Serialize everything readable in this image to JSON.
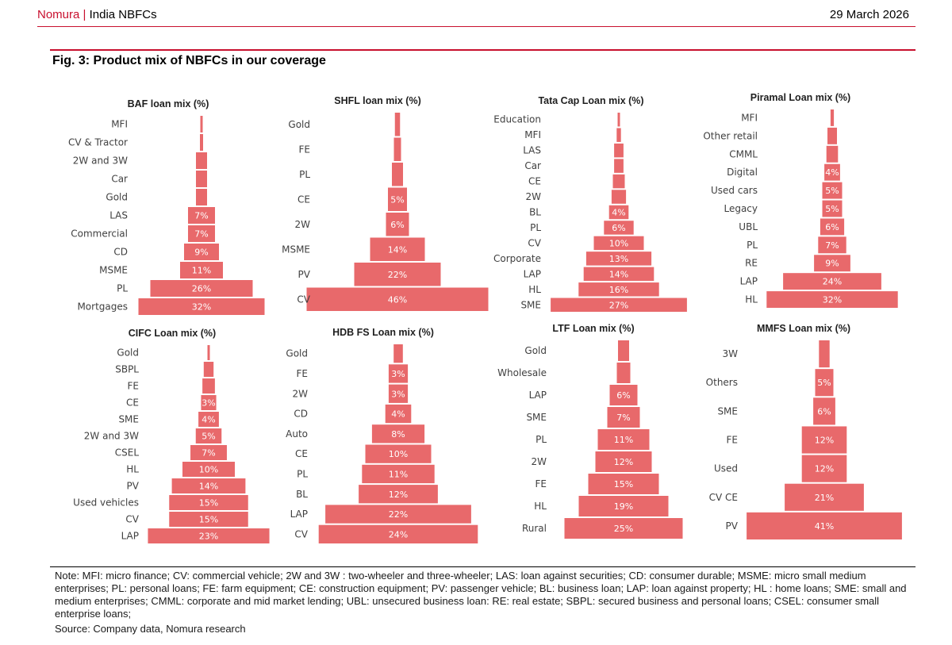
{
  "header": {
    "brand": "Nomura",
    "separator": "|",
    "section": "India NBFCs",
    "date": "29 March 2026"
  },
  "figure": {
    "title": "Fig. 3: Product mix of NBFCs in our coverage"
  },
  "colors": {
    "bar": "#e8696b",
    "accent": "#c8102e"
  },
  "chart_data": [
    {
      "type": "bar",
      "title": "BAF loan mix (%)",
      "categories": [
        "MFI",
        "CV & Tractor",
        "2W and 3W",
        "Car",
        "Gold",
        "LAS",
        "Commercial",
        "CD",
        "MSME",
        "PL",
        "Mortgages"
      ],
      "values": [
        0.5,
        1,
        3,
        3,
        3,
        7,
        7,
        9,
        11,
        26,
        32
      ],
      "labels": [
        "",
        "",
        "",
        "",
        "",
        "7%",
        "7%",
        "9%",
        "11%",
        "26%",
        "32%"
      ]
    },
    {
      "type": "bar",
      "title": "SHFL loan mix (%)",
      "categories": [
        "Gold",
        "FE",
        "PL",
        "CE",
        "2W",
        "MSME",
        "PV",
        "CV"
      ],
      "values": [
        1.5,
        2,
        3,
        5,
        6,
        14,
        22,
        46
      ],
      "labels": [
        "",
        "",
        "",
        "5%",
        "6%",
        "14%",
        "22%",
        "46%"
      ]
    },
    {
      "type": "bar",
      "title": "Tata Cap Loan mix (%)",
      "categories": [
        "Education",
        "MFI",
        "LAS",
        "Car",
        "CE",
        "2W",
        "BL",
        "PL",
        "CV",
        "Corporate",
        "LAP",
        "HL",
        "SME"
      ],
      "values": [
        0.5,
        1,
        2,
        2,
        2.5,
        3,
        4,
        6,
        10,
        13,
        14,
        16,
        27
      ],
      "labels": [
        "",
        "",
        "",
        "",
        "",
        "",
        "4%",
        "6%",
        "10%",
        "13%",
        "14%",
        "16%",
        "27%"
      ]
    },
    {
      "type": "bar",
      "title": "Piramal Loan mix (%)",
      "categories": [
        "MFI",
        "Other retail",
        "CMML",
        "Digital",
        "Used cars",
        "Legacy",
        "UBL",
        "PL",
        "RE",
        "LAP",
        "HL"
      ],
      "values": [
        1,
        2.5,
        3,
        4,
        5,
        5,
        6,
        7,
        9,
        24,
        32
      ],
      "labels": [
        "",
        "",
        "",
        "4%",
        "5%",
        "5%",
        "6%",
        "7%",
        "9%",
        "24%",
        "32%"
      ]
    },
    {
      "type": "bar",
      "title": "CIFC Loan mix (%)",
      "categories": [
        "Gold",
        "SBPL",
        "FE",
        "CE",
        "SME",
        "2W and 3W",
        "CSEL",
        "HL",
        "PV",
        "Used vehicles",
        "CV",
        "LAP"
      ],
      "values": [
        0.5,
        2,
        2.5,
        3,
        4,
        5,
        7,
        10,
        14,
        15,
        15,
        23
      ],
      "labels": [
        "",
        "",
        "",
        "3%",
        "4%",
        "5%",
        "7%",
        "10%",
        "14%",
        "15%",
        "15%",
        "23%"
      ]
    },
    {
      "type": "bar",
      "title": "HDB FS Loan mix (%)",
      "categories": [
        "Gold",
        "FE",
        "2W",
        "CD",
        "Auto",
        "CE",
        "PL",
        "BL",
        "LAP",
        "CV"
      ],
      "values": [
        1.5,
        3,
        3,
        4,
        8,
        10,
        11,
        12,
        22,
        24
      ],
      "labels": [
        "",
        "3%",
        "3%",
        "4%",
        "8%",
        "10%",
        "11%",
        "12%",
        "22%",
        "24%"
      ]
    },
    {
      "type": "bar",
      "title": "LTF Loan mix (%)",
      "categories": [
        "Gold",
        "Wholesale",
        "LAP",
        "SME",
        "PL",
        "2W",
        "FE",
        "HL",
        "Rural"
      ],
      "values": [
        2.5,
        3,
        6,
        7,
        11,
        12,
        15,
        19,
        25
      ],
      "labels": [
        "",
        "",
        "6%",
        "7%",
        "11%",
        "12%",
        "15%",
        "19%",
        "25%"
      ]
    },
    {
      "type": "bar",
      "title": "MMFS Loan mix (%)",
      "categories": [
        "3W",
        "Others",
        "SME",
        "FE",
        "Used",
        "CV CE",
        "PV"
      ],
      "values": [
        3,
        5,
        6,
        12,
        12,
        21,
        41
      ],
      "labels": [
        "",
        "5%",
        "6%",
        "12%",
        "12%",
        "21%",
        "41%"
      ]
    }
  ],
  "note": "Note: MFI: micro finance; CV: commercial vehicle; 2W and 3W : two-wheeler and three-wheeler; LAS: loan against securities; CD: consumer durable; MSME: micro small medium enterprises; PL: personal loans; FE: farm equipment; CE: construction equipment; PV: passenger vehicle; BL: business loan; LAP: loan against property; HL : home loans; SME: small and medium enterprises; CMML: corporate and mid market lending; UBL: unsecured business loan: RE: real estate; SBPL: secured business and personal loans; CSEL: consumer small enterprise loans;",
  "source": "Source: Company data, Nomura research"
}
